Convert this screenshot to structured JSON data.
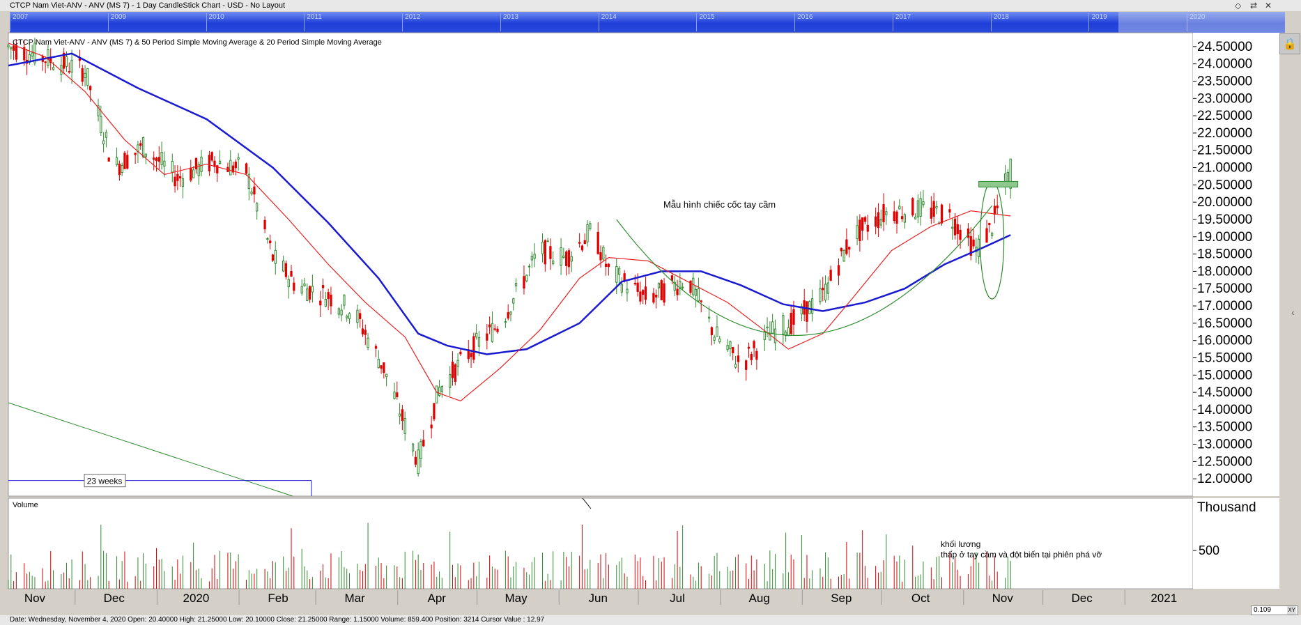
{
  "window": {
    "title": "CTCP Nam Viet-ANV - ANV (MS 7) - 1 Day CandleStick Chart - USD - No Layout",
    "controls": [
      "◇",
      "⇄",
      "✕"
    ]
  },
  "navigator": {
    "years": [
      "2007",
      "2009",
      "2010",
      "2011",
      "2012",
      "2013",
      "2014",
      "2015",
      "2016",
      "2017",
      "2018",
      "2019",
      "2020"
    ]
  },
  "status": {
    "text": "Date: Wednesday, November 4, 2020 Open: 20.40000 High: 21.25000 Low: 20.10000 Close: 21.25000 Range: 1.15000 Volume: 859.400 Position: 3214 Cursor Value : 12.97",
    "xy_value": "0.109",
    "xy_label": "XY"
  },
  "colors": {
    "up": "#2e8b2e",
    "down": "#e00000",
    "sma50": "#1a1ad0",
    "sma20": "#e82020",
    "pattern": "#2e8b2e",
    "plot_bg": "#ffffff"
  },
  "chart_data": [
    {
      "type": "candlestick",
      "title": "CTCP Nam Viet-ANV - ANV (MS 7) & 50 Period Simple Moving Average & 20 Period Simple Moving Average",
      "ylim": [
        11.5,
        24.9
      ],
      "yticks": [
        "24.50000",
        "24.00000",
        "23.50000",
        "23.00000",
        "22.50000",
        "22.00000",
        "21.50000",
        "21.00000",
        "20.50000",
        "20.00000",
        "19.50000",
        "19.00000",
        "18.50000",
        "18.00000",
        "17.50000",
        "17.00000",
        "16.50000",
        "16.00000",
        "15.50000",
        "15.00000",
        "14.50000",
        "14.00000",
        "13.50000",
        "13.00000",
        "12.50000",
        "12.00000"
      ],
      "x_labels": [
        "Nov",
        "Dec",
        "2020",
        "Feb",
        "Mar",
        "Apr",
        "May",
        "Jun",
        "Jul",
        "Aug",
        "Sep",
        "Oct",
        "Nov",
        "Dec",
        "2021"
      ],
      "x_domain": [
        "2019-10-22",
        "2021-01-12"
      ],
      "ohlc_daily_sample": {
        "note_dates": "trading days 2019-10-22 to 2020-11-04",
        "closes_start": 24.5,
        "closes_end": 21.25,
        "min_low": 11.5,
        "max_high": 24.9
      },
      "series": [
        {
          "name": "50 Period Simple Moving Average",
          "points": [
            [
              "2019-10-22",
              23.95
            ],
            [
              "2019-11-15",
              24.3
            ],
            [
              "2019-12-10",
              23.3
            ],
            [
              "2020-01-05",
              22.4
            ],
            [
              "2020-01-30",
              21.0
            ],
            [
              "2020-02-20",
              19.4
            ],
            [
              "2020-03-10",
              17.8
            ],
            [
              "2020-03-25",
              16.2
            ],
            [
              "2020-04-05",
              15.85
            ],
            [
              "2020-04-20",
              15.6
            ],
            [
              "2020-05-05",
              15.75
            ],
            [
              "2020-05-25",
              16.5
            ],
            [
              "2020-06-10",
              17.7
            ],
            [
              "2020-06-25",
              18.0
            ],
            [
              "2020-07-10",
              18.0
            ],
            [
              "2020-07-25",
              17.6
            ],
            [
              "2020-08-10",
              17.05
            ],
            [
              "2020-08-25",
              16.85
            ],
            [
              "2020-09-10",
              17.1
            ],
            [
              "2020-09-25",
              17.5
            ],
            [
              "2020-10-10",
              18.2
            ],
            [
              "2020-10-25",
              18.7
            ],
            [
              "2020-11-04",
              19.05
            ]
          ]
        },
        {
          "name": "20 Period Simple Moving Average",
          "points": [
            [
              "2019-10-22",
              24.6
            ],
            [
              "2019-11-05",
              24.2
            ],
            [
              "2019-11-20",
              23.2
            ],
            [
              "2019-12-05",
              21.8
            ],
            [
              "2019-12-20",
              20.8
            ],
            [
              "2020-01-05",
              21.1
            ],
            [
              "2020-01-20",
              20.8
            ],
            [
              "2020-02-05",
              19.5
            ],
            [
              "2020-02-20",
              18.2
            ],
            [
              "2020-03-05",
              17.1
            ],
            [
              "2020-03-20",
              16.1
            ],
            [
              "2020-04-01",
              14.5
            ],
            [
              "2020-04-10",
              14.25
            ],
            [
              "2020-04-25",
              15.2
            ],
            [
              "2020-05-10",
              16.3
            ],
            [
              "2020-05-25",
              17.8
            ],
            [
              "2020-06-05",
              18.4
            ],
            [
              "2020-06-20",
              18.3
            ],
            [
              "2020-07-05",
              17.7
            ],
            [
              "2020-07-20",
              17.1
            ],
            [
              "2020-08-01",
              16.4
            ],
            [
              "2020-08-12",
              15.75
            ],
            [
              "2020-08-25",
              16.2
            ],
            [
              "2020-09-05",
              17.2
            ],
            [
              "2020-09-20",
              18.6
            ],
            [
              "2020-10-05",
              19.3
            ],
            [
              "2020-10-20",
              19.75
            ],
            [
              "2020-11-04",
              19.6
            ]
          ]
        }
      ],
      "annotations": {
        "pattern_label": "Mẫu hình chiếc cốc tay cầm",
        "measure_label": "23 weeks"
      }
    },
    {
      "type": "bar",
      "title": "Volume",
      "y_unit": "Thousand",
      "yticks": [
        "500"
      ],
      "annotation_line1": "khối lương",
      "annotation_line2": "thấp ở tay cầm và đột biến tại phiên phá vỡ"
    }
  ]
}
